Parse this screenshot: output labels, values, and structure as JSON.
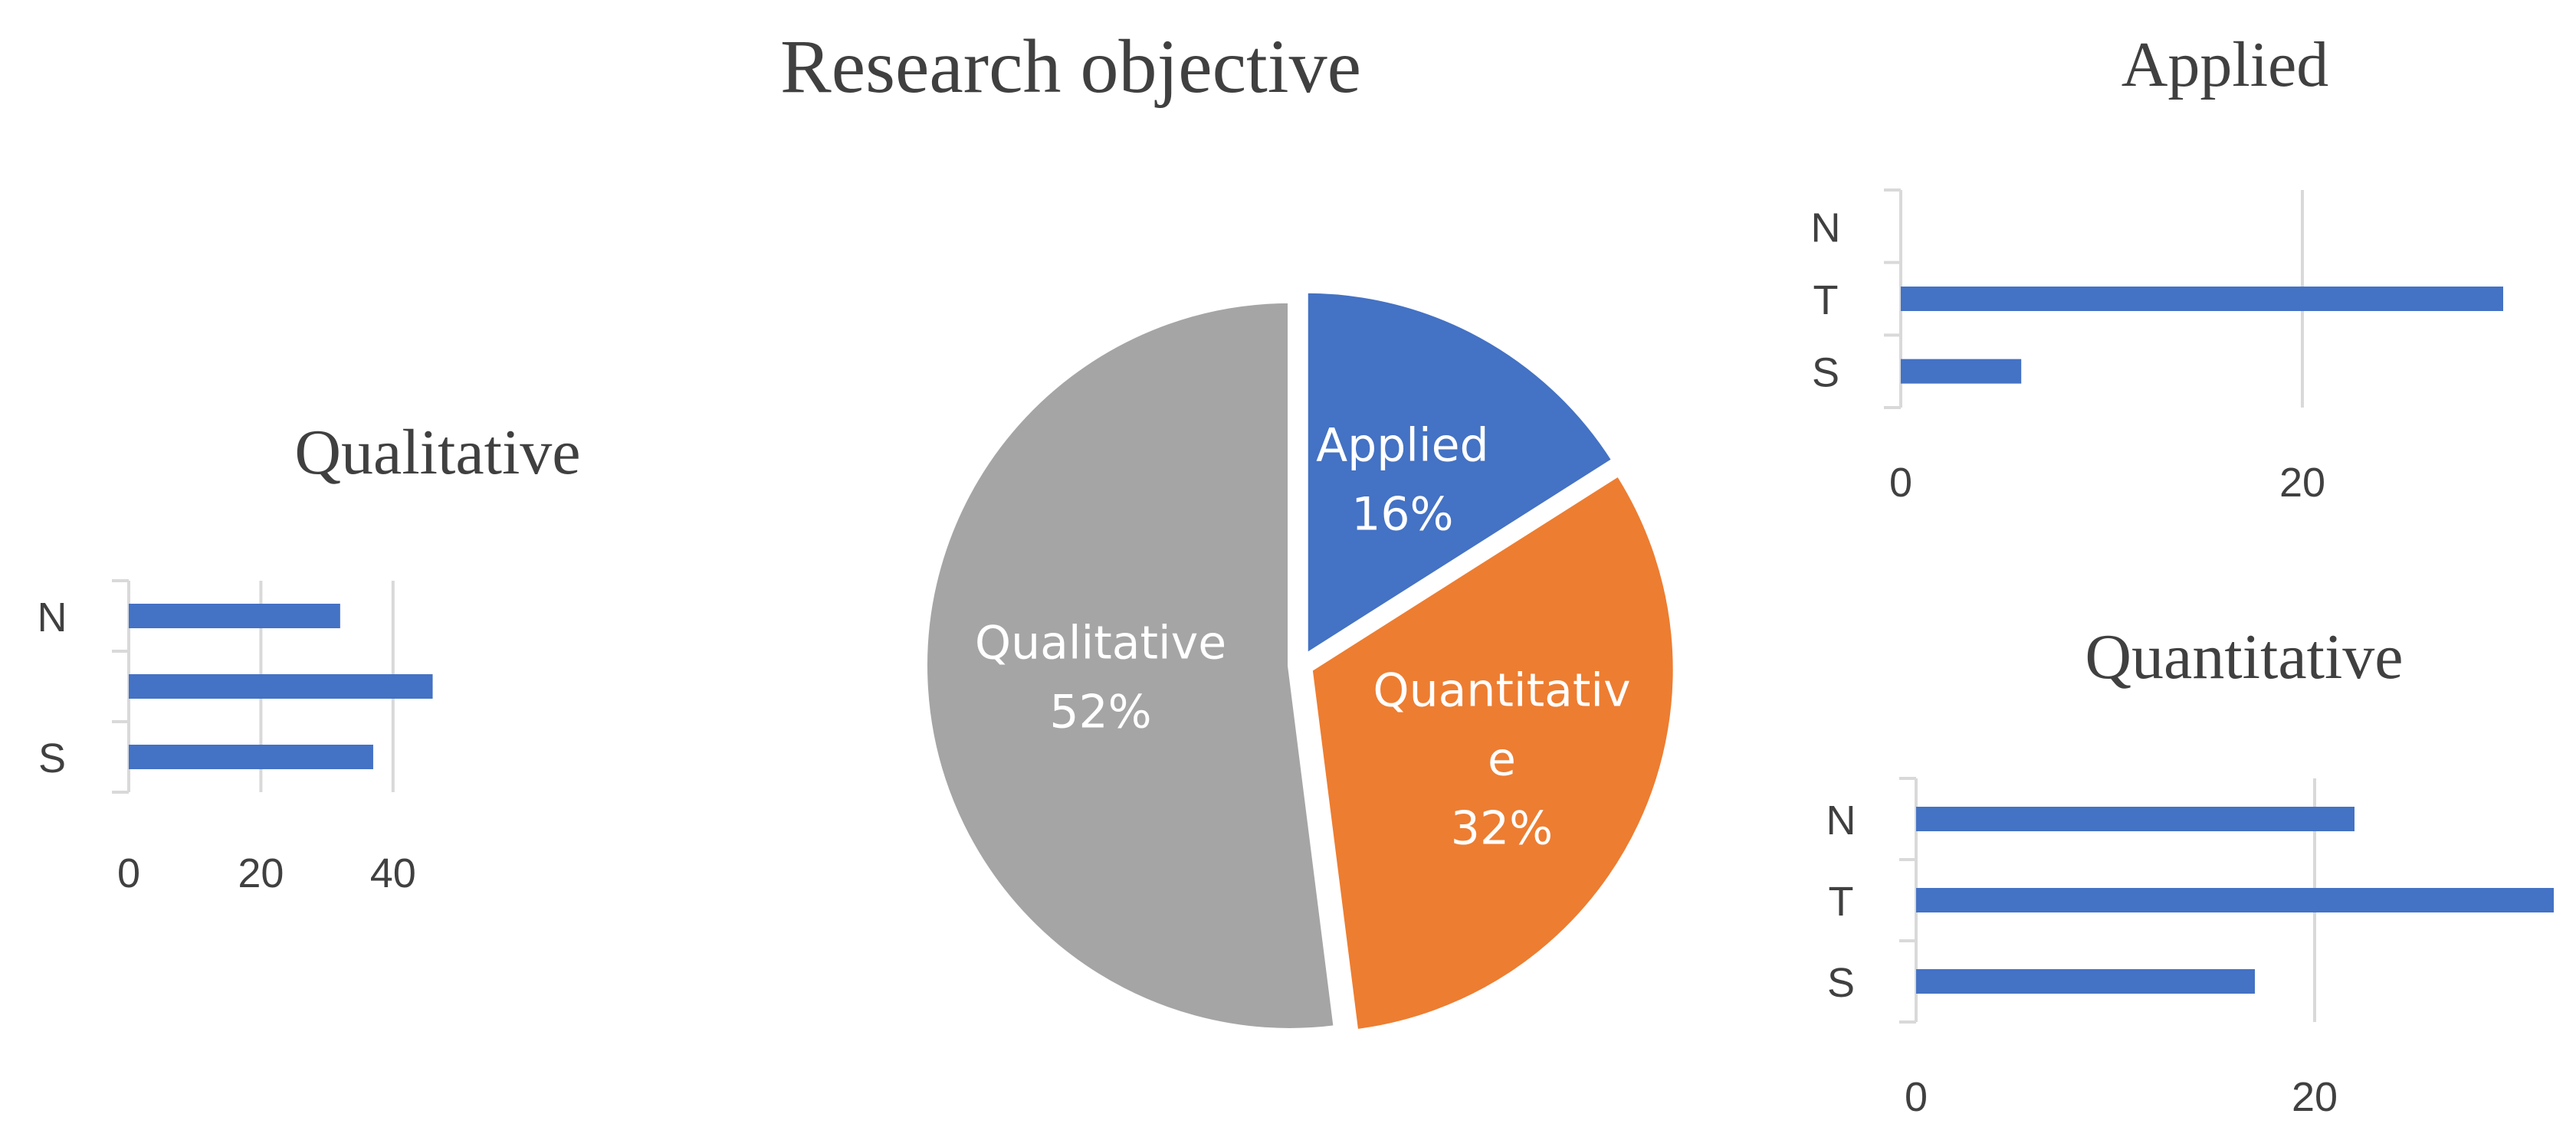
{
  "chart_data": [
    {
      "type": "pie",
      "title": "Research objective",
      "slices": [
        {
          "label_lines": [
            "Applied"
          ],
          "value": 16,
          "pct": "16%",
          "color": "#4472C4"
        },
        {
          "label_lines": [
            "Quantitativ",
            "e"
          ],
          "value": 32,
          "pct": "32%",
          "color": "#ED7D31"
        },
        {
          "label_lines": [
            "Qualitative"
          ],
          "value": 52,
          "pct": "52%",
          "color": "#A5A5A5"
        }
      ],
      "start_angle_deg": 0,
      "direction": "clockwise"
    },
    {
      "type": "bar",
      "orientation": "horizontal",
      "title": "Qualitative",
      "category_labels": [
        "N",
        "",
        "S"
      ],
      "values": [
        32,
        46,
        37
      ],
      "xlim": [
        0,
        46
      ],
      "xticks": [
        0,
        20,
        40
      ],
      "grid": true,
      "color": "#4472C4"
    },
    {
      "type": "bar",
      "orientation": "horizontal",
      "title": "Applied",
      "category_labels": [
        "N",
        "T",
        "S"
      ],
      "values": [
        0,
        30,
        6
      ],
      "xlim": [
        0,
        30
      ],
      "xticks": [
        0,
        20
      ],
      "grid": true,
      "color": "#4472C4"
    },
    {
      "type": "bar",
      "orientation": "horizontal",
      "title": "Quantitative",
      "category_labels": [
        "N",
        "T",
        "S"
      ],
      "values": [
        22,
        32,
        17
      ],
      "xlim": [
        0,
        32
      ],
      "xticks": [
        0,
        20
      ],
      "grid": true,
      "color": "#4472C4"
    }
  ]
}
